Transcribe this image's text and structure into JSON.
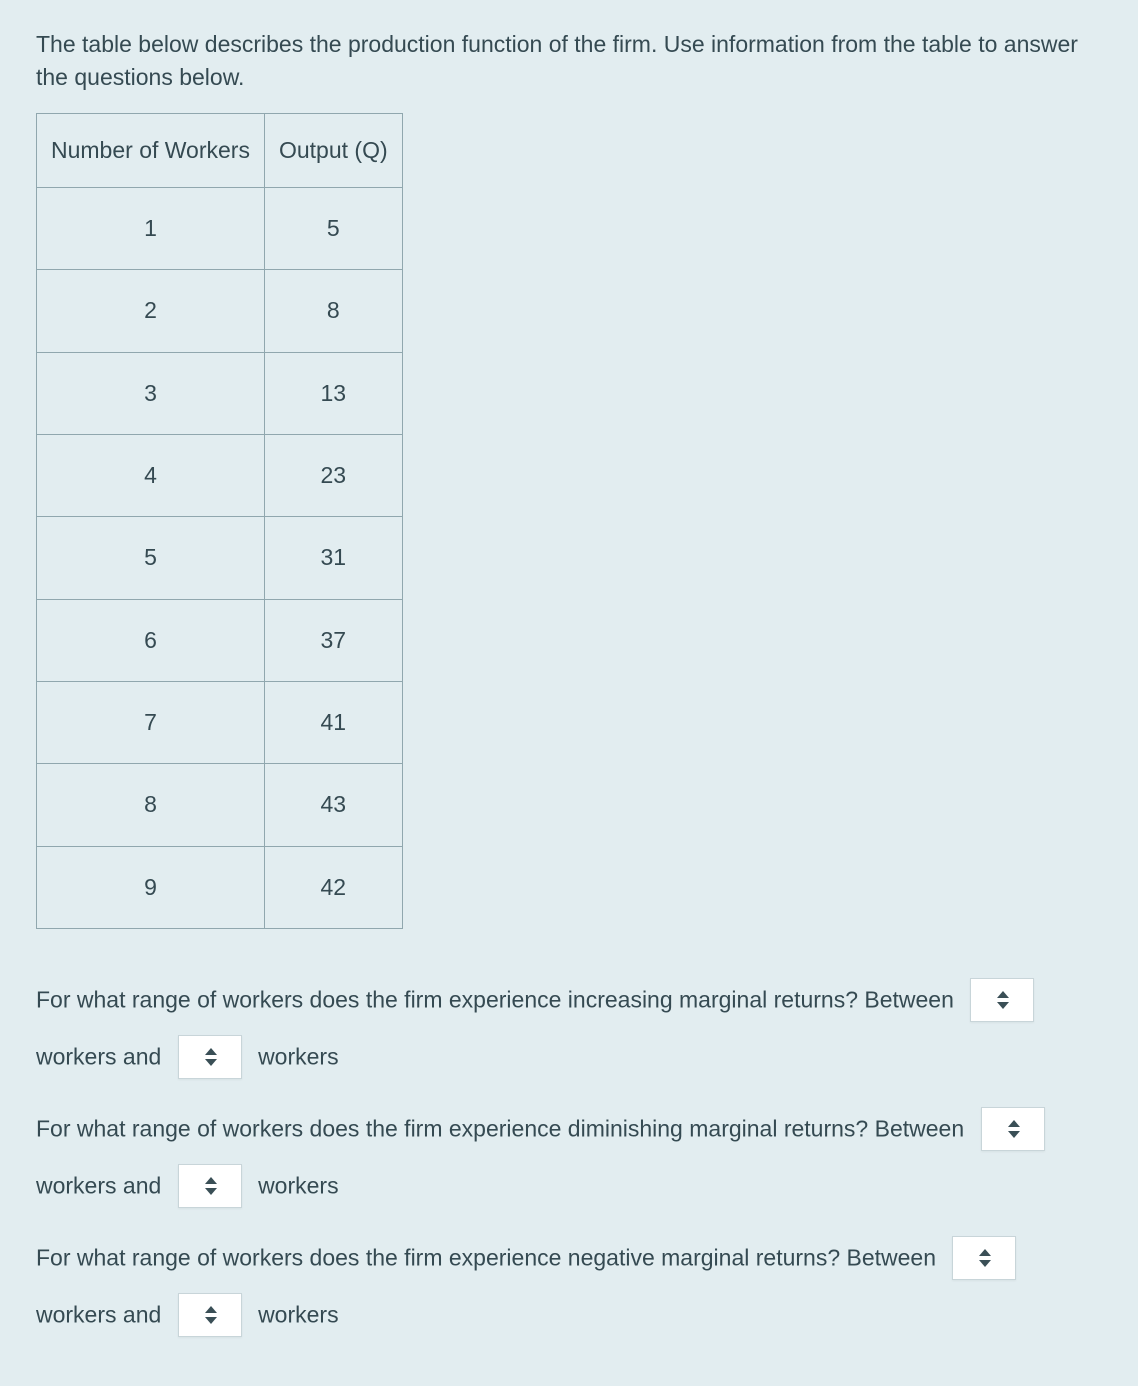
{
  "intro": "The table below describes the production function of the firm.  Use information from the table to answer the questions below.",
  "table": {
    "columns": [
      "Number of Workers",
      "Output (Q)"
    ],
    "rows": [
      [
        "1",
        "5"
      ],
      [
        "2",
        "8"
      ],
      [
        "3",
        "13"
      ],
      [
        "4",
        "23"
      ],
      [
        "5",
        "31"
      ],
      [
        "6",
        "37"
      ],
      [
        "7",
        "41"
      ],
      [
        "8",
        "43"
      ],
      [
        "9",
        "42"
      ]
    ],
    "border_color": "#90a7ae",
    "text_color": "#354a52"
  },
  "questions": {
    "q1": {
      "text_a": "For what range of workers does the firm experience increasing marginal returns?  Between",
      "mid": "workers and",
      "tail": "workers"
    },
    "q2": {
      "text_a": "For what range of workers does the firm experience diminishing marginal returns? Between",
      "mid": "workers and",
      "tail": "workers"
    },
    "q3": {
      "text_a": "For what range of workers does the firm experience negative marginal returns? Between",
      "mid": "workers and",
      "tail": "workers"
    }
  },
  "colors": {
    "background": "#e2edf0",
    "text": "#354a52",
    "select_bg": "#ffffff",
    "select_border": "#c8d5d9"
  }
}
